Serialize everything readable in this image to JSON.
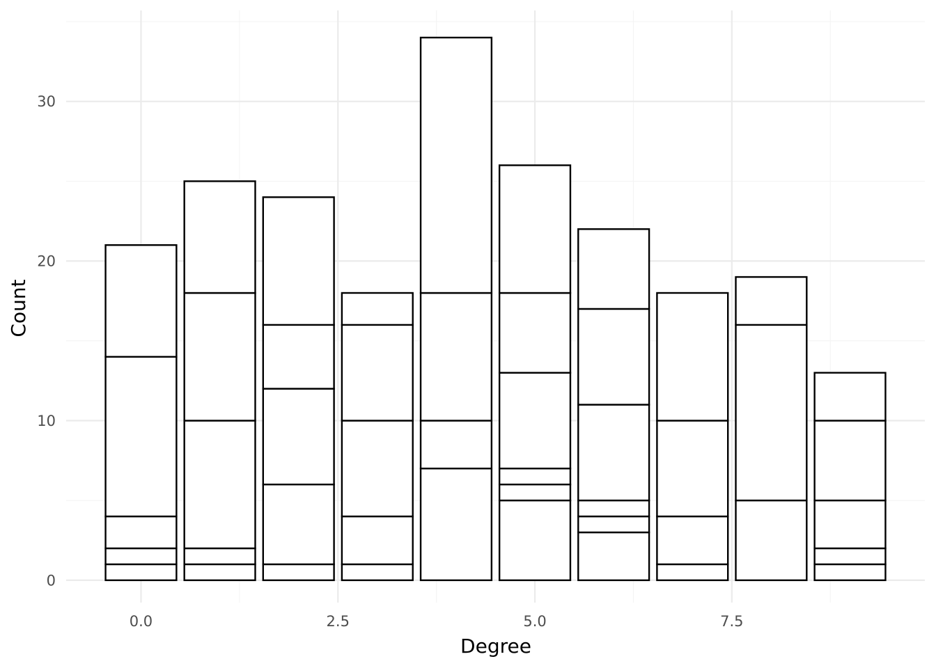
{
  "chart_data": {
    "type": "bar",
    "stacked": true,
    "xlabel": "Degree",
    "ylabel": "Count",
    "xlim": [
      -0.95,
      9.95
    ],
    "ylim": [
      -1.4,
      35.7
    ],
    "x_ticks": [
      0.0,
      2.5,
      5.0,
      7.5
    ],
    "x_tick_labels": [
      "0.0",
      "2.5",
      "5.0",
      "7.5"
    ],
    "y_ticks": [
      0,
      10,
      20,
      30
    ],
    "y_tick_labels": [
      "0",
      "10",
      "20",
      "30"
    ],
    "grid": true,
    "bar_width": 0.9,
    "fill_color": "#ffffff",
    "outline_color": "#000000",
    "bars": [
      {
        "x": 0,
        "total": 21,
        "boundaries": [
          0,
          1,
          2,
          4,
          14,
          21
        ]
      },
      {
        "x": 1,
        "total": 25,
        "boundaries": [
          0,
          1,
          2,
          10,
          18,
          25
        ]
      },
      {
        "x": 2,
        "total": 24,
        "boundaries": [
          0,
          1,
          6,
          12,
          16,
          24
        ]
      },
      {
        "x": 3,
        "total": 18,
        "boundaries": [
          0,
          1,
          4,
          10,
          16,
          18
        ]
      },
      {
        "x": 4,
        "total": 34,
        "boundaries": [
          0,
          7,
          10,
          18,
          34
        ]
      },
      {
        "x": 5,
        "total": 26,
        "boundaries": [
          0,
          5,
          6,
          7,
          13,
          18,
          26
        ]
      },
      {
        "x": 6,
        "total": 22,
        "boundaries": [
          0,
          3,
          4,
          5,
          11,
          17,
          22
        ]
      },
      {
        "x": 7,
        "total": 18,
        "boundaries": [
          0,
          1,
          4,
          10,
          18
        ]
      },
      {
        "x": 8,
        "total": 19,
        "boundaries": [
          0,
          5,
          16,
          19
        ]
      },
      {
        "x": 9,
        "total": 13,
        "boundaries": [
          0,
          1,
          2,
          5,
          10,
          13
        ]
      }
    ]
  }
}
